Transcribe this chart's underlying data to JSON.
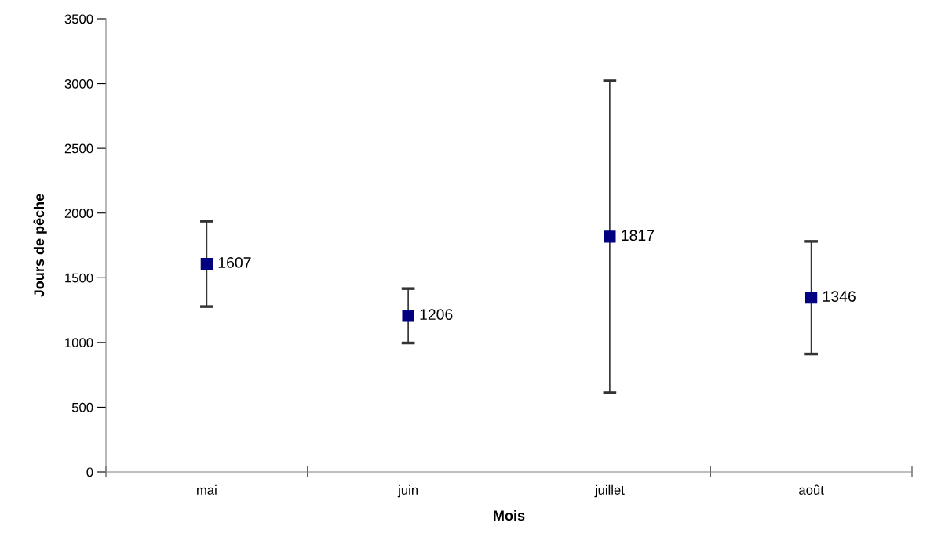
{
  "chart_data": {
    "type": "scatter",
    "xlabel": "Mois",
    "ylabel": "Jours de pêche",
    "categories": [
      "mai",
      "juin",
      "juillet",
      "août"
    ],
    "series": [
      {
        "color": "#000080",
        "values": [
          1607,
          1206,
          1817,
          1346
        ],
        "errors": [
          330,
          210,
          1205,
          435
        ]
      }
    ],
    "data_labels": true,
    "marker": "square",
    "ylim": [
      0,
      3500
    ],
    "yticks": [
      0,
      500,
      1000,
      1500,
      2000,
      2500,
      3000,
      3500
    ],
    "grid": false,
    "legend": false
  }
}
